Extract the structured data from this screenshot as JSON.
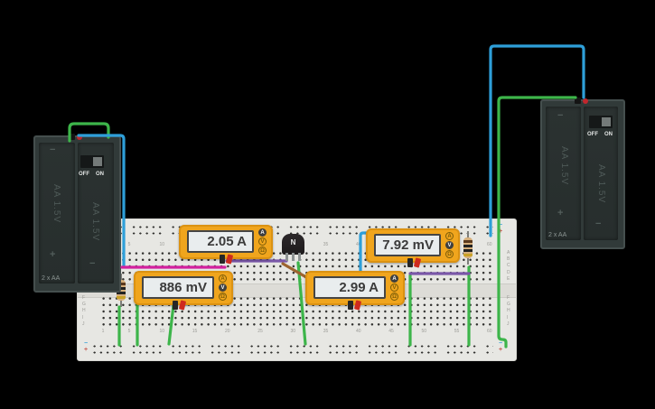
{
  "breadboard": {
    "column_labels": [
      "1",
      "5",
      "10",
      "15",
      "20",
      "25",
      "30",
      "35",
      "40",
      "45",
      "50",
      "55",
      "60"
    ],
    "column_positions": [
      1,
      5,
      10,
      15,
      20,
      25,
      30,
      35,
      40,
      45,
      50,
      55,
      60
    ],
    "row_letters": [
      "A",
      "B",
      "C",
      "D",
      "E",
      "F",
      "G",
      "H",
      "I",
      "J"
    ],
    "rail_minus": "−",
    "rail_plus": "+"
  },
  "battery_left": {
    "pack_label": "2 x AA",
    "cell_label_1": "AA 1.5V",
    "cell_label_2": "AA 1.5V",
    "switch_off": "OFF",
    "switch_on": "ON",
    "minus": "−",
    "plus": "+"
  },
  "battery_right": {
    "pack_label": "2 x AA",
    "cell_label_1": "AA 1.5V",
    "cell_label_2": "AA 1.5V",
    "switch_off": "OFF",
    "switch_on": "ON",
    "minus": "−",
    "plus": "+"
  },
  "multimeters": [
    {
      "id": "ammeter-top-left",
      "reading": "2.05 A",
      "mode": "A"
    },
    {
      "id": "voltmeter-bottom-left",
      "reading": "886 mV",
      "mode": "V"
    },
    {
      "id": "ammeter-bottom-mid",
      "reading": "2.99 A",
      "mode": "A"
    },
    {
      "id": "voltmeter-top-right",
      "reading": "7.92 mV",
      "mode": "V"
    }
  ],
  "multimeter_buttons": {
    "amps": "A",
    "volts": "V",
    "ohms": "Ω"
  },
  "transistor": {
    "label": "N"
  },
  "colors": {
    "wire_green": "#3db54a",
    "wire_blue": "#2e9fd9",
    "wire_magenta": "#d2219e",
    "wire_purple": "#7a57a8",
    "wire_brown": "#9c642f",
    "meter_body": "#f0a51d",
    "terminal_red": "#c1272d"
  }
}
